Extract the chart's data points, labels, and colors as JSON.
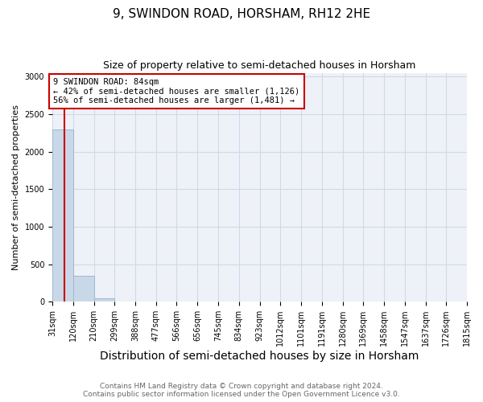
{
  "title": "9, SWINDON ROAD, HORSHAM, RH12 2HE",
  "subtitle": "Size of property relative to semi-detached houses in Horsham",
  "xlabel": "Distribution of semi-detached houses by size in Horsham",
  "ylabel": "Number of semi-detached properties",
  "bar_edges": [
    31,
    120,
    210,
    299,
    388,
    477,
    566,
    656,
    745,
    834,
    923,
    1012,
    1101,
    1191,
    1280,
    1369,
    1458,
    1547,
    1637,
    1726,
    1815
  ],
  "bar_heights": [
    2300,
    350,
    50,
    0,
    0,
    0,
    0,
    0,
    0,
    0,
    0,
    0,
    0,
    0,
    0,
    0,
    0,
    0,
    0,
    0
  ],
  "bar_color": "#c8d8e8",
  "bar_edgecolor": "#a0b8cc",
  "property_x": 84,
  "property_line_color": "#cc0000",
  "annotation_text": "9 SWINDON ROAD: 84sqm\n← 42% of semi-detached houses are smaller (1,126)\n56% of semi-detached houses are larger (1,481) →",
  "annotation_box_edgecolor": "#cc0000",
  "annotation_box_facecolor": "#ffffff",
  "ylim": [
    0,
    3050
  ],
  "xlim": [
    31,
    1815
  ],
  "yticks": [
    0,
    500,
    1000,
    1500,
    2000,
    2500,
    3000
  ],
  "xtick_labels": [
    "31sqm",
    "120sqm",
    "210sqm",
    "299sqm",
    "388sqm",
    "477sqm",
    "566sqm",
    "656sqm",
    "745sqm",
    "834sqm",
    "923sqm",
    "1012sqm",
    "1101sqm",
    "1191sqm",
    "1280sqm",
    "1369sqm",
    "1458sqm",
    "1547sqm",
    "1637sqm",
    "1726sqm",
    "1815sqm"
  ],
  "grid_color": "#d0d8e8",
  "background_color": "#eef2f8",
  "footer_line1": "Contains HM Land Registry data © Crown copyright and database right 2024.",
  "footer_line2": "Contains public sector information licensed under the Open Government Licence v3.0.",
  "title_fontsize": 11,
  "subtitle_fontsize": 9,
  "xlabel_fontsize": 10,
  "ylabel_fontsize": 8,
  "annotation_fontsize": 7.5,
  "footer_fontsize": 6.5,
  "tick_fontsize": 7
}
